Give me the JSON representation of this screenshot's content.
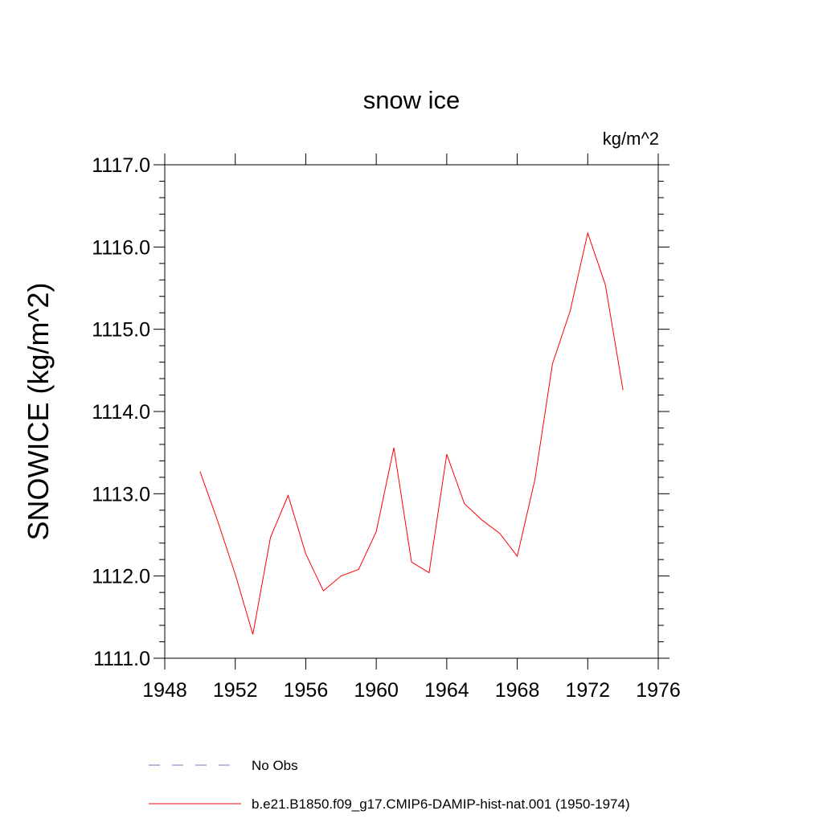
{
  "chart_data": {
    "type": "line",
    "title": "snow ice",
    "units": "kg/m^2",
    "ylabel": "SNOWICE  (kg/m^2)",
    "xlabel": "",
    "xlim": [
      1948,
      1976
    ],
    "ylim": [
      1111.0,
      1117.0
    ],
    "x_ticks": [
      "1948",
      "1952",
      "1956",
      "1960",
      "1964",
      "1968",
      "1972",
      "1976"
    ],
    "y_ticks": [
      "1111.0",
      "1112.0",
      "1113.0",
      "1114.0",
      "1115.0",
      "1116.0",
      "1117.0"
    ],
    "grid": false,
    "legend_position": "bottom",
    "series": [
      {
        "name": "b.e21.B1850.f09_g17.CMIP6-DAMIP-hist-nat.001 (1950-1974)",
        "color": "#ff0000",
        "style": "solid",
        "x": [
          1950,
          1951,
          1952,
          1953,
          1954,
          1955,
          1956,
          1957,
          1958,
          1959,
          1960,
          1961,
          1962,
          1963,
          1964,
          1965,
          1966,
          1967,
          1968,
          1969,
          1970,
          1971,
          1972,
          1973,
          1974
        ],
        "y": [
          1113.27,
          1112.67,
          1112.02,
          1111.29,
          1112.47,
          1112.98,
          1112.27,
          1111.82,
          1112.0,
          1112.08,
          1112.54,
          1113.56,
          1112.17,
          1112.04,
          1113.48,
          1112.88,
          1112.68,
          1112.52,
          1112.24,
          1113.17,
          1114.58,
          1115.22,
          1116.17,
          1115.54,
          1114.26
        ]
      }
    ],
    "legend": [
      {
        "label": "No Obs",
        "color": "#7777cc",
        "style": "dashed"
      },
      {
        "label": "b.e21.B1850.f09_g17.CMIP6-DAMIP-hist-nat.001 (1950-1974)",
        "color": "#ff0000",
        "style": "solid"
      }
    ]
  }
}
